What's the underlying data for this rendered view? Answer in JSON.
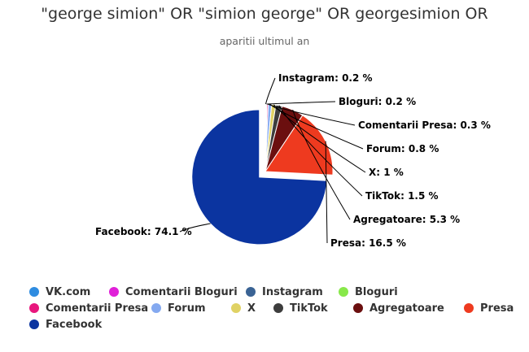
{
  "chart_data": {
    "type": "pie",
    "title": "\"george simion\" OR \"simion george\" OR georgesimion OR",
    "subtitle": "aparitii ultimul an",
    "series": [
      {
        "values": [
          {
            "name": "VK.com",
            "value": 0.0,
            "color": "#2f8ce0",
            "label": ""
          },
          {
            "name": "Comentarii Bloguri",
            "value": 0.0,
            "color": "#e020d8",
            "label": ""
          },
          {
            "name": "Instagram",
            "value": 0.2,
            "color": "#3a6394",
            "label": "Instagram: 0.2 %"
          },
          {
            "name": "Bloguri",
            "value": 0.2,
            "color": "#88e84a",
            "label": "Bloguri: 0.2 %"
          },
          {
            "name": "Comentarii Presa",
            "value": 0.3,
            "color": "#e8177d",
            "label": "Comentarii Presa: 0.3 %"
          },
          {
            "name": "Forum",
            "value": 0.8,
            "color": "#84a9f0",
            "label": "Forum: 0.8 %"
          },
          {
            "name": "X",
            "value": 1.0,
            "color": "#e0d264",
            "label": "X: 1 %"
          },
          {
            "name": "TikTok",
            "value": 1.5,
            "color": "#3d3d3d",
            "label": "TikTok: 1.5 %"
          },
          {
            "name": "Agregatoare",
            "value": 5.3,
            "color": "#6b0f0f",
            "label": "Agregatoare: 5.3 %"
          },
          {
            "name": "Presa",
            "value": 16.5,
            "color": "#ee3a1f",
            "label": "Presa: 16.5 %"
          },
          {
            "name": "Facebook",
            "value": 74.1,
            "color": "#0b34a0",
            "label": "Facebook: 74.1 %"
          }
        ]
      }
    ],
    "exploded": "Facebook",
    "legend_position": "bottom"
  }
}
